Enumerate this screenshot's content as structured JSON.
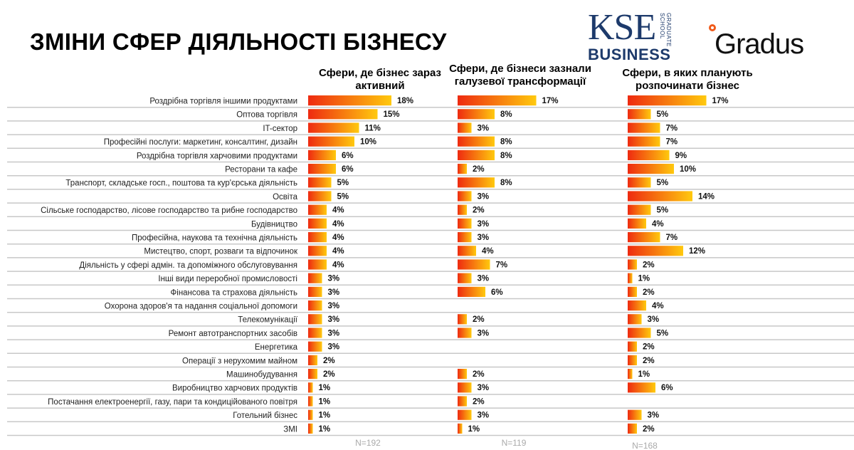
{
  "title": "ЗМІНИ СФЕР ДІЯЛЬНОСТІ БІЗНЕСУ",
  "logos": {
    "kse": "KSE",
    "kse_sub": "BUSINESS",
    "kse_vertical": "GRADUATE SCHOOL",
    "gradus": "Gradus"
  },
  "colors": {
    "bar_start": "#ee2a10",
    "bar_end": "#ffc90e",
    "kse_navy": "#1d3a6b",
    "gradus_orange": "#f05a1a",
    "gridline": "#c8c8c8"
  },
  "chart_data": {
    "type": "bar",
    "orientation": "horizontal",
    "unit": "%",
    "categories": [
      "Роздрібна торгівля іншими продуктами",
      "Оптова торгівля",
      "IT-сектор",
      "Професійні послуги: маркетинг, консалтинг, дизайн",
      "Роздрібна торгівля харчовими продуктами",
      "Ресторани та кафе",
      "Транспорт, складське госп., поштова та кур'єрська діяльність",
      "Освіта",
      "Сільське господарство, лісове господарство та рибне господарство",
      "Будівництво",
      "Професійна, наукова та технічна діяльність",
      "Мистецтво, спорт, розваги та відпочинок",
      "Діяльність у сфері адмін. та допоміжного обслуговування",
      "Інші види переробної промисловості",
      "Фінансова та страхова діяльність",
      "Охорона здоров'я та надання соціальної допомоги",
      "Телекомунікації",
      "Ремонт автотранспортних засобів",
      "Енергетика",
      "Операції з нерухомим майном",
      "Машинобудування",
      "Виробництво харчових продуктів",
      "Постачання електроенергії, газу, пари та кондиційованого повітря",
      "Готельний бізнес",
      "ЗМІ"
    ],
    "series": [
      {
        "name": "Сфери, де бізнес зараз активний",
        "n": "N=192",
        "values": [
          18,
          15,
          11,
          10,
          6,
          6,
          5,
          5,
          4,
          4,
          4,
          4,
          4,
          3,
          3,
          3,
          3,
          3,
          3,
          2,
          2,
          1,
          1,
          1,
          1
        ]
      },
      {
        "name": "Сфери, де бізнеси зазнали галузевої трансформації",
        "n": "N=119",
        "values": [
          17,
          8,
          3,
          8,
          8,
          2,
          8,
          3,
          2,
          3,
          3,
          4,
          7,
          3,
          6,
          null,
          2,
          3,
          null,
          null,
          2,
          3,
          2,
          3,
          1
        ]
      },
      {
        "name": "Сфери, в яких планують розпочинати бізнес",
        "n": "N=168",
        "values": [
          17,
          5,
          7,
          7,
          9,
          10,
          5,
          14,
          5,
          4,
          7,
          12,
          2,
          1,
          2,
          4,
          3,
          5,
          2,
          2,
          1,
          6,
          null,
          3,
          2
        ]
      }
    ]
  }
}
